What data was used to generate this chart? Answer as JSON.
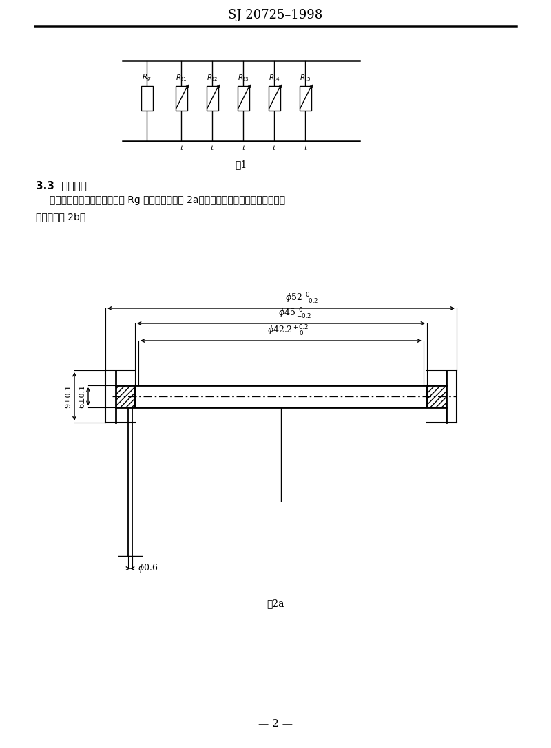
{
  "title": "SJ 20725–1998",
  "fig1_caption": "图1",
  "fig2a_caption": "图2a",
  "page_number": "— 2 —",
  "section_title": "3.3  外形尺尺",
  "section_body1": "    组件的漆包锄铜线绕固定电阀 Rg 的外形尺尺见图 2a，组件的低温热敏电阀并联件的外",
  "section_body2": "形尺尺见图 2b。",
  "bg_color": "#ffffff",
  "line_color": "#000000"
}
